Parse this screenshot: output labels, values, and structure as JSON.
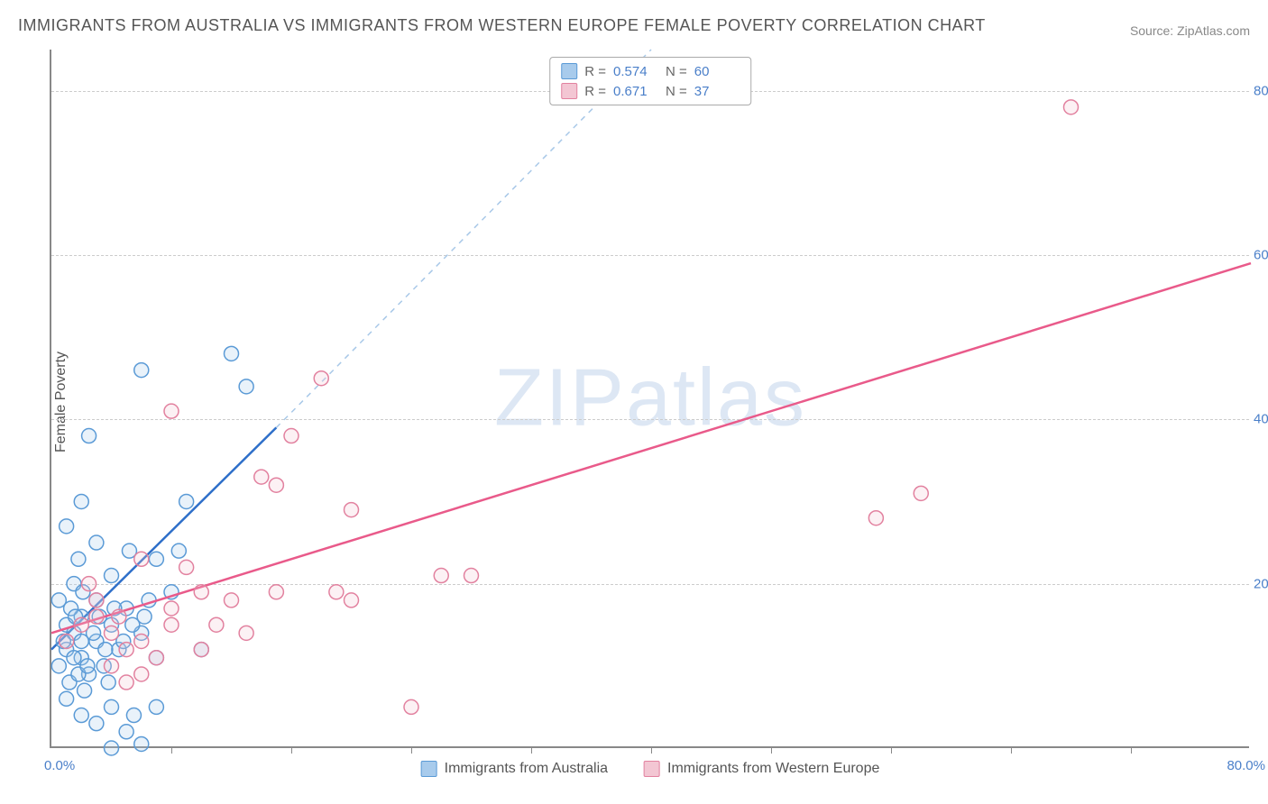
{
  "title": "IMMIGRANTS FROM AUSTRALIA VS IMMIGRANTS FROM WESTERN EUROPE FEMALE POVERTY CORRELATION CHART",
  "source": "Source: ZipAtlas.com",
  "ylabel": "Female Poverty",
  "watermark": "ZIPatlas",
  "chart": {
    "type": "scatter",
    "xlim": [
      0,
      80
    ],
    "ylim": [
      0,
      85
    ],
    "xtick_labels": [
      "0.0%",
      "80.0%"
    ],
    "ytick_positions": [
      20,
      40,
      60,
      80
    ],
    "ytick_labels": [
      "20.0%",
      "40.0%",
      "60.0%",
      "80.0%"
    ],
    "grid_color": "#cccccc",
    "background_color": "#ffffff",
    "axis_color": "#888888",
    "marker_radius": 8,
    "marker_fill_opacity": 0.25,
    "marker_stroke_width": 1.5,
    "line_width": 2.5,
    "dash_line_color": "#a8c8e8",
    "dash_pattern": "6 6",
    "xtick_minor_positions": [
      8,
      16,
      24,
      32,
      40,
      48,
      56,
      64,
      72
    ]
  },
  "series": [
    {
      "key": "australia",
      "label": "Immigrants from Australia",
      "color_fill": "#a8cbec",
      "color_stroke": "#5a9ad6",
      "line_color": "#2e6fc9",
      "r_value": "0.574",
      "n_value": "60",
      "trend_line": {
        "x1": 0,
        "y1": 12,
        "x2": 15,
        "y2": 39
      },
      "dash_line": {
        "x1": 15,
        "y1": 39,
        "x2": 40,
        "y2": 85
      },
      "points": [
        [
          0.5,
          10
        ],
        [
          1,
          12
        ],
        [
          1.2,
          8
        ],
        [
          1.5,
          14
        ],
        [
          2,
          11
        ],
        [
          2,
          16
        ],
        [
          2.5,
          9
        ],
        [
          3,
          13
        ],
        [
          1,
          6
        ],
        [
          3,
          18
        ],
        [
          3.5,
          10
        ],
        [
          4,
          15
        ],
        [
          4.5,
          12
        ],
        [
          5,
          17
        ],
        [
          2,
          4
        ],
        [
          2.2,
          7
        ],
        [
          3.8,
          8
        ],
        [
          1.8,
          23
        ],
        [
          4,
          21
        ],
        [
          5.2,
          24
        ],
        [
          6,
          14
        ],
        [
          6.5,
          18
        ],
        [
          7,
          11
        ],
        [
          8,
          19
        ],
        [
          1,
          27
        ],
        [
          2,
          30
        ],
        [
          3,
          25
        ],
        [
          10,
          12
        ],
        [
          3,
          3
        ],
        [
          4,
          5
        ],
        [
          5,
          2
        ],
        [
          5.5,
          4
        ],
        [
          6,
          0.5
        ],
        [
          7,
          5
        ],
        [
          4,
          0
        ],
        [
          0.5,
          18
        ],
        [
          1.5,
          20
        ],
        [
          2.5,
          38
        ],
        [
          6,
          46
        ],
        [
          12,
          48
        ],
        [
          13,
          44
        ],
        [
          9,
          30
        ],
        [
          8.5,
          24
        ],
        [
          7,
          23
        ],
        [
          1,
          15
        ],
        [
          1.5,
          11
        ],
        [
          2,
          13
        ],
        [
          2.8,
          14
        ],
        [
          3.2,
          16
        ],
        [
          4.2,
          17
        ],
        [
          1.8,
          9
        ],
        [
          2.4,
          10
        ],
        [
          3.6,
          12
        ],
        [
          4.8,
          13
        ],
        [
          5.4,
          15
        ],
        [
          6.2,
          16
        ],
        [
          1.3,
          17
        ],
        [
          2.1,
          19
        ],
        [
          0.8,
          13
        ],
        [
          1.6,
          16
        ]
      ]
    },
    {
      "key": "western_europe",
      "label": "Immigrants from Western Europe",
      "color_fill": "#f3c6d3",
      "color_stroke": "#e2819f",
      "line_color": "#e95a8a",
      "r_value": "0.671",
      "n_value": "37",
      "trend_line": {
        "x1": 0,
        "y1": 14,
        "x2": 80,
        "y2": 59
      },
      "points": [
        [
          1,
          13
        ],
        [
          2,
          15
        ],
        [
          3,
          16
        ],
        [
          4,
          14
        ],
        [
          5,
          12
        ],
        [
          6,
          13
        ],
        [
          7,
          11
        ],
        [
          8,
          17
        ],
        [
          10,
          19
        ],
        [
          11,
          15
        ],
        [
          4,
          10
        ],
        [
          5,
          8
        ],
        [
          6,
          9
        ],
        [
          8,
          41
        ],
        [
          6,
          23
        ],
        [
          9,
          22
        ],
        [
          14,
          33
        ],
        [
          15,
          32
        ],
        [
          16,
          38
        ],
        [
          18,
          45
        ],
        [
          15,
          19
        ],
        [
          19,
          19
        ],
        [
          20,
          29
        ],
        [
          24,
          5
        ],
        [
          26,
          21
        ],
        [
          28,
          21
        ],
        [
          10,
          12
        ],
        [
          12,
          18
        ],
        [
          13,
          14
        ],
        [
          8,
          15
        ],
        [
          20,
          18
        ],
        [
          55,
          28
        ],
        [
          58,
          31
        ],
        [
          68,
          78
        ],
        [
          3,
          18
        ],
        [
          2.5,
          20
        ],
        [
          4.5,
          16
        ]
      ]
    }
  ],
  "legend_top": {
    "r_label": "R =",
    "n_label": "N ="
  }
}
